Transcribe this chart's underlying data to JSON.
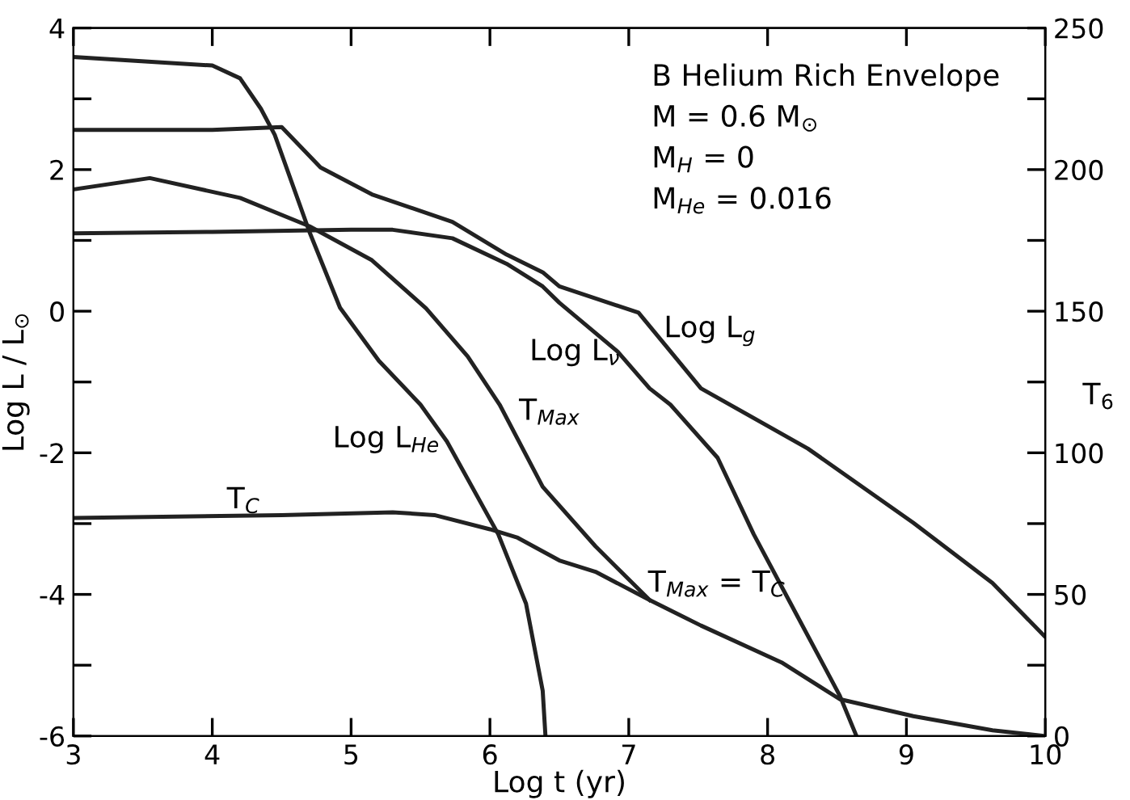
{
  "chart_data": {
    "type": "line",
    "xlabel": "Log t (yr)",
    "ylabel": "Log L / L$_{⊙}$",
    "y2label": "T$_{6}$",
    "xlim": [
      3,
      10
    ],
    "xticks": [
      3,
      4,
      5,
      6,
      7,
      8,
      9,
      10
    ],
    "ylim": [
      -6,
      4
    ],
    "yticks": [
      -6,
      {
        "value": -5,
        "label": null
      },
      -4,
      {
        "value": -3,
        "label": null
      },
      -2,
      {
        "value": -1,
        "label": null
      },
      0,
      {
        "value": 1,
        "label": null
      },
      2,
      {
        "value": 3,
        "label": null
      },
      4
    ],
    "y2lim": [
      0,
      250
    ],
    "y2ticks": [
      0,
      {
        "value": 25,
        "label": null
      },
      50,
      {
        "value": 75,
        "label": null
      },
      100,
      {
        "value": 125,
        "label": null
      },
      150,
      {
        "value": 175,
        "label": null
      },
      200,
      {
        "value": 225,
        "label": null
      },
      250
    ],
    "grid": false,
    "marker": "none",
    "line_style": "solid",
    "series": [
      {
        "color": "#222222",
        "x": [
          3,
          4,
          4.2,
          4.35,
          4.45,
          4.7,
          4.92,
          5.2,
          5.5,
          5.69,
          6.06,
          6.26,
          6.38,
          6.4
        ],
        "values": [
          3.59,
          3.47,
          3.29,
          2.86,
          2.49,
          1.12,
          0.05,
          -0.7,
          -1.32,
          -1.84,
          -3.15,
          -4.13,
          -5.36,
          -6
        ]
      },
      {
        "color": "#222222",
        "x": [
          3,
          4,
          4.5,
          4.78,
          5.15,
          5.73,
          6.12,
          6.38,
          6.5,
          7.07,
          7.52,
          8.29,
          9.05,
          9.62,
          10
        ],
        "values": [
          2.56,
          2.56,
          2.6,
          2.03,
          1.65,
          1.26,
          0.8,
          0.55,
          0.35,
          -0.02,
          -1.09,
          -1.94,
          -2.99,
          -3.84,
          -4.6
        ]
      },
      {
        "color": "#222222",
        "x": [
          3,
          4,
          5,
          5.3,
          5.73,
          6.12,
          6.38,
          6.5,
          6.92,
          7.15,
          7.3,
          7.64,
          7.9,
          8.21,
          8.52,
          8.64
        ],
        "values": [
          1.1,
          1.12,
          1.15,
          1.15,
          1.03,
          0.67,
          0.35,
          0.12,
          -0.57,
          -1.09,
          -1.32,
          -2.07,
          -3.15,
          -4.29,
          -5.43,
          -6
        ]
      },
      {
        "color": "#222222",
        "axis": "y2",
        "x": [
          3,
          3.55,
          4.2,
          4.7,
          5.15,
          5.54,
          5.84,
          6.07,
          6.38,
          6.76,
          7.15
        ],
        "values": [
          193,
          197,
          190,
          180,
          168,
          151,
          134,
          117,
          88,
          67,
          48
        ]
      },
      {
        "color": "#222222",
        "axis": "y2",
        "x": [
          3,
          4.5,
          5.3,
          5.6,
          6.0,
          6.2,
          6.5,
          6.76,
          7.15,
          7.52,
          8.1,
          8.52,
          9.05,
          9.62,
          10
        ],
        "values": [
          77,
          78,
          79,
          78,
          73,
          70,
          62,
          58,
          48,
          39,
          26,
          13,
          7,
          2,
          0
        ]
      }
    ],
    "annotations": [
      "B Helium Rich Envelope",
      "M = 0.6 M$_{⊙}$",
      "M$_{H}$ = 0",
      "M$_{He}$ = 0.016",
      "Log L$_{He}$",
      "Log L$_{ν}$",
      "Log L$_{g}$",
      "T$_{Max}$",
      "T$_{C}$",
      "T$_{Max}$ = T$_{C}$"
    ]
  }
}
